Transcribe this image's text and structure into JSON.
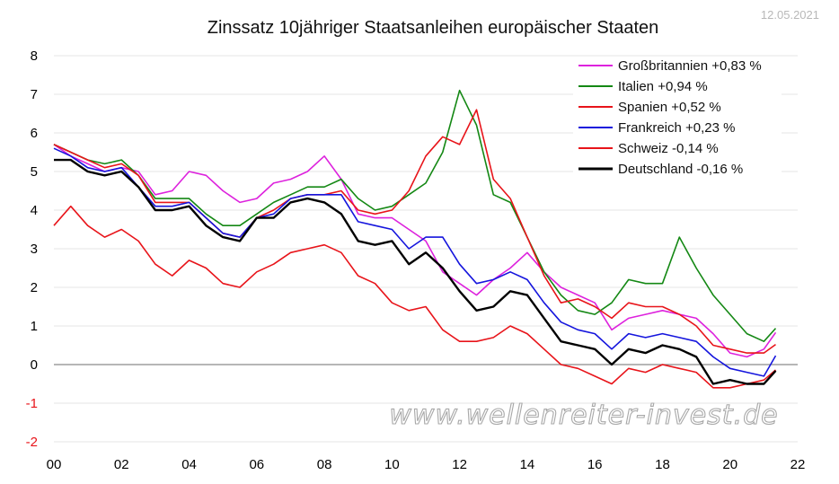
{
  "header": {
    "title": "Zinssatz 10jähriger Staatsanleihen europäischer Staaten",
    "date": "12.05.2021"
  },
  "watermark": "www.wellenreiter-invest.de",
  "chart_data": {
    "type": "line",
    "title": "Zinssatz 10jähriger Staatsanleihen europäischer Staaten",
    "xlabel": "",
    "ylabel": "",
    "xlim": [
      0,
      22
    ],
    "ylim": [
      -2,
      8
    ],
    "x_ticks": [
      "00",
      "02",
      "04",
      "06",
      "08",
      "10",
      "12",
      "14",
      "16",
      "18",
      "20",
      "22"
    ],
    "y_ticks": [
      "8",
      "7",
      "6",
      "5",
      "4",
      "3",
      "2",
      "1",
      "0",
      "-1",
      "-2"
    ],
    "grid": "horizontal",
    "zero_line": true,
    "legend_position": "top-right",
    "series": [
      {
        "name": "Großbritannien +0,83 %",
        "color": "#dd22dd",
        "points": [
          [
            0,
            5.7
          ],
          [
            0.5,
            5.4
          ],
          [
            1,
            5.2
          ],
          [
            1.5,
            5.0
          ],
          [
            2,
            5.1
          ],
          [
            2.5,
            5.0
          ],
          [
            3,
            4.4
          ],
          [
            3.5,
            4.5
          ],
          [
            4,
            5.0
          ],
          [
            4.5,
            4.9
          ],
          [
            5,
            4.5
          ],
          [
            5.5,
            4.2
          ],
          [
            6,
            4.3
          ],
          [
            6.5,
            4.7
          ],
          [
            7,
            4.8
          ],
          [
            7.5,
            5.0
          ],
          [
            8,
            5.4
          ],
          [
            8.5,
            4.8
          ],
          [
            9,
            3.9
          ],
          [
            9.5,
            3.8
          ],
          [
            10,
            3.8
          ],
          [
            10.5,
            3.5
          ],
          [
            11,
            3.2
          ],
          [
            11.5,
            2.4
          ],
          [
            12,
            2.1
          ],
          [
            12.5,
            1.8
          ],
          [
            13,
            2.2
          ],
          [
            13.5,
            2.5
          ],
          [
            14,
            2.9
          ],
          [
            14.5,
            2.4
          ],
          [
            15,
            2.0
          ],
          [
            15.5,
            1.8
          ],
          [
            16,
            1.6
          ],
          [
            16.5,
            0.9
          ],
          [
            17,
            1.2
          ],
          [
            17.5,
            1.3
          ],
          [
            18,
            1.4
          ],
          [
            18.5,
            1.3
          ],
          [
            19,
            1.2
          ],
          [
            19.5,
            0.8
          ],
          [
            20,
            0.3
          ],
          [
            20.5,
            0.2
          ],
          [
            21,
            0.4
          ],
          [
            21.35,
            0.83
          ]
        ]
      },
      {
        "name": "Italien +0,94 %",
        "color": "#148814",
        "points": [
          [
            0,
            5.7
          ],
          [
            0.5,
            5.5
          ],
          [
            1,
            5.3
          ],
          [
            1.5,
            5.2
          ],
          [
            2,
            5.3
          ],
          [
            2.5,
            4.9
          ],
          [
            3,
            4.3
          ],
          [
            3.5,
            4.3
          ],
          [
            4,
            4.3
          ],
          [
            4.5,
            3.9
          ],
          [
            5,
            3.6
          ],
          [
            5.5,
            3.6
          ],
          [
            6,
            3.9
          ],
          [
            6.5,
            4.2
          ],
          [
            7,
            4.4
          ],
          [
            7.5,
            4.6
          ],
          [
            8,
            4.6
          ],
          [
            8.5,
            4.8
          ],
          [
            9,
            4.3
          ],
          [
            9.5,
            4.0
          ],
          [
            10,
            4.1
          ],
          [
            10.5,
            4.4
          ],
          [
            11,
            4.7
          ],
          [
            11.5,
            5.5
          ],
          [
            12,
            7.1
          ],
          [
            12.5,
            6.2
          ],
          [
            13,
            4.4
          ],
          [
            13.5,
            4.2
          ],
          [
            14,
            3.3
          ],
          [
            14.5,
            2.4
          ],
          [
            15,
            1.8
          ],
          [
            15.5,
            1.4
          ],
          [
            16,
            1.3
          ],
          [
            16.5,
            1.6
          ],
          [
            17,
            2.2
          ],
          [
            17.5,
            2.1
          ],
          [
            18,
            2.1
          ],
          [
            18.5,
            3.3
          ],
          [
            19,
            2.5
          ],
          [
            19.5,
            1.8
          ],
          [
            20,
            1.3
          ],
          [
            20.5,
            0.8
          ],
          [
            21,
            0.6
          ],
          [
            21.35,
            0.94
          ]
        ]
      },
      {
        "name": "Spanien +0,52 %",
        "color": "#e8141a",
        "points": [
          [
            0,
            5.7
          ],
          [
            0.5,
            5.5
          ],
          [
            1,
            5.3
          ],
          [
            1.5,
            5.1
          ],
          [
            2,
            5.2
          ],
          [
            2.5,
            4.9
          ],
          [
            3,
            4.2
          ],
          [
            3.5,
            4.2
          ],
          [
            4,
            4.2
          ],
          [
            4.5,
            3.8
          ],
          [
            5,
            3.4
          ],
          [
            5.5,
            3.3
          ],
          [
            6,
            3.8
          ],
          [
            6.5,
            4.0
          ],
          [
            7,
            4.3
          ],
          [
            7.5,
            4.4
          ],
          [
            8,
            4.4
          ],
          [
            8.5,
            4.5
          ],
          [
            9,
            4.0
          ],
          [
            9.5,
            3.9
          ],
          [
            10,
            4.0
          ],
          [
            10.5,
            4.5
          ],
          [
            11,
            5.4
          ],
          [
            11.5,
            5.9
          ],
          [
            12,
            5.7
          ],
          [
            12.5,
            6.6
          ],
          [
            13,
            4.8
          ],
          [
            13.5,
            4.3
          ],
          [
            14,
            3.3
          ],
          [
            14.5,
            2.3
          ],
          [
            15,
            1.6
          ],
          [
            15.5,
            1.7
          ],
          [
            16,
            1.5
          ],
          [
            16.5,
            1.2
          ],
          [
            17,
            1.6
          ],
          [
            17.5,
            1.5
          ],
          [
            18,
            1.5
          ],
          [
            18.5,
            1.3
          ],
          [
            19,
            1.0
          ],
          [
            19.5,
            0.5
          ],
          [
            20,
            0.4
          ],
          [
            20.5,
            0.3
          ],
          [
            21,
            0.3
          ],
          [
            21.35,
            0.52
          ]
        ]
      },
      {
        "name": "Frankreich +0,23 %",
        "color": "#1515dd",
        "points": [
          [
            0,
            5.6
          ],
          [
            0.5,
            5.4
          ],
          [
            1,
            5.1
          ],
          [
            1.5,
            5.0
          ],
          [
            2,
            5.1
          ],
          [
            2.5,
            4.6
          ],
          [
            3,
            4.1
          ],
          [
            3.5,
            4.1
          ],
          [
            4,
            4.2
          ],
          [
            4.5,
            3.8
          ],
          [
            5,
            3.4
          ],
          [
            5.5,
            3.3
          ],
          [
            6,
            3.8
          ],
          [
            6.5,
            3.9
          ],
          [
            7,
            4.3
          ],
          [
            7.5,
            4.4
          ],
          [
            8,
            4.4
          ],
          [
            8.5,
            4.4
          ],
          [
            9,
            3.7
          ],
          [
            9.5,
            3.6
          ],
          [
            10,
            3.5
          ],
          [
            10.5,
            3.0
          ],
          [
            11,
            3.3
          ],
          [
            11.5,
            3.3
          ],
          [
            12,
            2.6
          ],
          [
            12.5,
            2.1
          ],
          [
            13,
            2.2
          ],
          [
            13.5,
            2.4
          ],
          [
            14,
            2.2
          ],
          [
            14.5,
            1.6
          ],
          [
            15,
            1.1
          ],
          [
            15.5,
            0.9
          ],
          [
            16,
            0.8
          ],
          [
            16.5,
            0.4
          ],
          [
            17,
            0.8
          ],
          [
            17.5,
            0.7
          ],
          [
            18,
            0.8
          ],
          [
            18.5,
            0.7
          ],
          [
            19,
            0.6
          ],
          [
            19.5,
            0.2
          ],
          [
            20,
            -0.1
          ],
          [
            20.5,
            -0.2
          ],
          [
            21,
            -0.3
          ],
          [
            21.35,
            0.23
          ]
        ]
      },
      {
        "name": "Schweiz -0,14 %",
        "color": "#e8141a",
        "points": [
          [
            0,
            3.6
          ],
          [
            0.5,
            4.1
          ],
          [
            1,
            3.6
          ],
          [
            1.5,
            3.3
          ],
          [
            2,
            3.5
          ],
          [
            2.5,
            3.2
          ],
          [
            3,
            2.6
          ],
          [
            3.5,
            2.3
          ],
          [
            4,
            2.7
          ],
          [
            4.5,
            2.5
          ],
          [
            5,
            2.1
          ],
          [
            5.5,
            2.0
          ],
          [
            6,
            2.4
          ],
          [
            6.5,
            2.6
          ],
          [
            7,
            2.9
          ],
          [
            7.5,
            3.0
          ],
          [
            8,
            3.1
          ],
          [
            8.5,
            2.9
          ],
          [
            9,
            2.3
          ],
          [
            9.5,
            2.1
          ],
          [
            10,
            1.6
          ],
          [
            10.5,
            1.4
          ],
          [
            11,
            1.5
          ],
          [
            11.5,
            0.9
          ],
          [
            12,
            0.6
          ],
          [
            12.5,
            0.6
          ],
          [
            13,
            0.7
          ],
          [
            13.5,
            1.0
          ],
          [
            14,
            0.8
          ],
          [
            14.5,
            0.4
          ],
          [
            15,
            0.0
          ],
          [
            15.5,
            -0.1
          ],
          [
            16,
            -0.3
          ],
          [
            16.5,
            -0.5
          ],
          [
            17,
            -0.1
          ],
          [
            17.5,
            -0.2
          ],
          [
            18,
            0.0
          ],
          [
            18.5,
            -0.1
          ],
          [
            19,
            -0.2
          ],
          [
            19.5,
            -0.6
          ],
          [
            20,
            -0.6
          ],
          [
            20.5,
            -0.5
          ],
          [
            21,
            -0.4
          ],
          [
            21.35,
            -0.14
          ]
        ]
      },
      {
        "name": "Deutschland -0,16 %",
        "color": "#000000",
        "points": [
          [
            0,
            5.3
          ],
          [
            0.5,
            5.3
          ],
          [
            1,
            5.0
          ],
          [
            1.5,
            4.9
          ],
          [
            2,
            5.0
          ],
          [
            2.5,
            4.6
          ],
          [
            3,
            4.0
          ],
          [
            3.5,
            4.0
          ],
          [
            4,
            4.1
          ],
          [
            4.5,
            3.6
          ],
          [
            5,
            3.3
          ],
          [
            5.5,
            3.2
          ],
          [
            6,
            3.8
          ],
          [
            6.5,
            3.8
          ],
          [
            7,
            4.2
          ],
          [
            7.5,
            4.3
          ],
          [
            8,
            4.2
          ],
          [
            8.5,
            3.9
          ],
          [
            9,
            3.2
          ],
          [
            9.5,
            3.1
          ],
          [
            10,
            3.2
          ],
          [
            10.5,
            2.6
          ],
          [
            11,
            2.9
          ],
          [
            11.5,
            2.5
          ],
          [
            12,
            1.9
          ],
          [
            12.5,
            1.4
          ],
          [
            13,
            1.5
          ],
          [
            13.5,
            1.9
          ],
          [
            14,
            1.8
          ],
          [
            14.5,
            1.2
          ],
          [
            15,
            0.6
          ],
          [
            15.5,
            0.5
          ],
          [
            16,
            0.4
          ],
          [
            16.5,
            0.0
          ],
          [
            17,
            0.4
          ],
          [
            17.5,
            0.3
          ],
          [
            18,
            0.5
          ],
          [
            18.5,
            0.4
          ],
          [
            19,
            0.2
          ],
          [
            19.5,
            -0.5
          ],
          [
            20,
            -0.4
          ],
          [
            20.5,
            -0.5
          ],
          [
            21,
            -0.5
          ],
          [
            21.35,
            -0.16
          ]
        ]
      }
    ]
  }
}
